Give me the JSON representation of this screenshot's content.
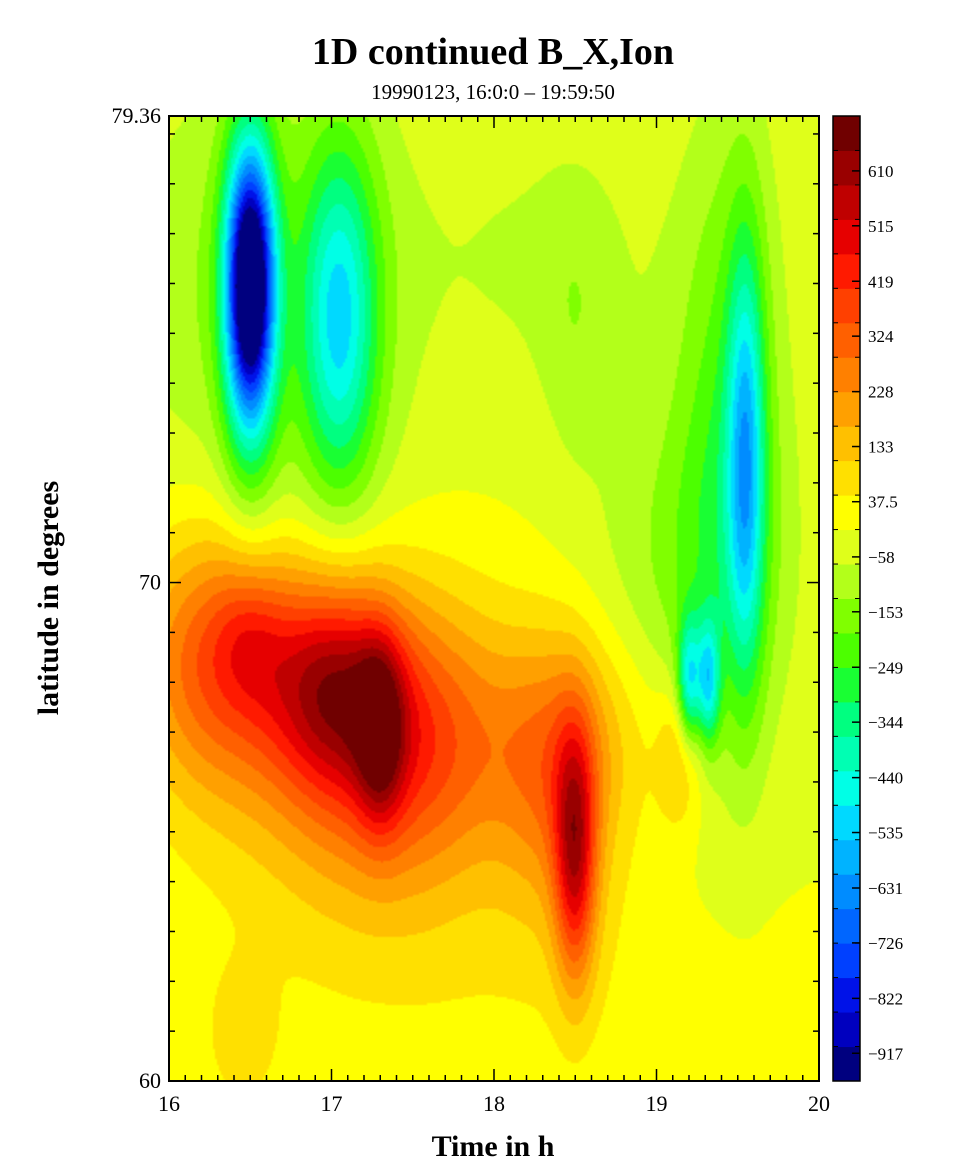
{
  "chart_data": {
    "type": "heatmap",
    "title": "1D continued B_X,Ion",
    "subtitle": "19990123, 16:0:0 – 19:59:50",
    "xlabel": "Time in h",
    "ylabel": "latitude in degrees",
    "xlim": [
      16,
      20
    ],
    "ylim": [
      60,
      79.36
    ],
    "x_ticks": [
      16,
      17,
      18,
      19,
      20
    ],
    "y_ticks": [
      "79.36",
      "70",
      "60"
    ],
    "colorbar": {
      "range": [
        -965,
        705
      ],
      "labels": [
        "610",
        "515",
        "419",
        "324",
        "228",
        "133",
        "37.5",
        "−58",
        "−153",
        "−249",
        "−344",
        "−440",
        "−535",
        "−631",
        "−726",
        "−822",
        "−917"
      ],
      "label_values": [
        610,
        515,
        419,
        324,
        228,
        133,
        37.5,
        -58,
        -153,
        -249,
        -344,
        -440,
        -535,
        -631,
        -726,
        -822,
        -917
      ],
      "colors": [
        "#00007f",
        "#0000bf",
        "#0012e8",
        "#0040ff",
        "#0066ff",
        "#008cff",
        "#00b3ff",
        "#00d9ff",
        "#00ffe6",
        "#00ffb3",
        "#00ff80",
        "#19ff33",
        "#4cff00",
        "#80ff00",
        "#b3ff1a",
        "#dfff1a",
        "#ffff00",
        "#ffe000",
        "#ffc000",
        "#ffa000",
        "#ff8000",
        "#ff6000",
        "#ff4000",
        "#ff1a00",
        "#e60000",
        "#bf0000",
        "#990000",
        "#700000"
      ]
    },
    "features": [
      {
        "t": 16.5,
        "lat": 76.0,
        "st": 0.1,
        "sl": 1.8,
        "value": -870
      },
      {
        "t": 16.5,
        "lat": 75.5,
        "st": 0.13,
        "sl": 3.0,
        "value": -240
      },
      {
        "t": 17.05,
        "lat": 75.3,
        "st": 0.16,
        "sl": 2.4,
        "value": -380
      },
      {
        "t": 17.0,
        "lat": 75.5,
        "st": 0.35,
        "sl": 3.5,
        "value": -120
      },
      {
        "t": 16.2,
        "lat": 76.0,
        "st": 0.35,
        "sl": 3.0,
        "value": -90
      },
      {
        "t": 18.3,
        "lat": 76.5,
        "st": 0.6,
        "sl": 2.0,
        "value": -60
      },
      {
        "t": 19.55,
        "lat": 72.5,
        "st": 0.08,
        "sl": 3.0,
        "value": -400
      },
      {
        "t": 19.45,
        "lat": 73.0,
        "st": 0.22,
        "sl": 4.5,
        "value": -180
      },
      {
        "t": 19.2,
        "lat": 68.0,
        "st": 0.05,
        "sl": 0.9,
        "value": -380
      },
      {
        "t": 19.32,
        "lat": 68.0,
        "st": 0.05,
        "sl": 0.9,
        "value": -380
      },
      {
        "t": 19.2,
        "lat": 70.5,
        "st": 0.4,
        "sl": 2.5,
        "value": -120
      },
      {
        "t": 18.5,
        "lat": 75.0,
        "st": 0.15,
        "sl": 2.0,
        "value": -60
      },
      {
        "t": 16.3,
        "lat": 68.5,
        "st": 0.35,
        "sl": 1.8,
        "value": 330
      },
      {
        "t": 16.5,
        "lat": 69.0,
        "st": 0.15,
        "sl": 1.0,
        "value": 120
      },
      {
        "t": 17.0,
        "lat": 68.0,
        "st": 0.28,
        "sl": 1.5,
        "value": 380
      },
      {
        "t": 17.3,
        "lat": 67.0,
        "st": 0.1,
        "sl": 1.3,
        "value": 300
      },
      {
        "t": 17.45,
        "lat": 66.8,
        "st": 0.45,
        "sl": 2.0,
        "value": 340
      },
      {
        "t": 17.0,
        "lat": 66.5,
        "st": 0.7,
        "sl": 2.5,
        "value": 120
      },
      {
        "t": 18.5,
        "lat": 64.5,
        "st": 0.09,
        "sl": 1.8,
        "value": 430
      },
      {
        "t": 18.4,
        "lat": 66.0,
        "st": 0.25,
        "sl": 2.0,
        "value": 220
      },
      {
        "t": 18.55,
        "lat": 67.0,
        "st": 0.45,
        "sl": 1.5,
        "value": 90
      },
      {
        "t": 19.15,
        "lat": 66.5,
        "st": 0.1,
        "sl": 1.0,
        "value": 150
      },
      {
        "t": 16.45,
        "lat": 60.8,
        "st": 0.15,
        "sl": 1.0,
        "value": 90
      },
      {
        "t": 18.0,
        "lat": 62.0,
        "st": 1.4,
        "sl": 2.0,
        "value": 50
      }
    ]
  }
}
